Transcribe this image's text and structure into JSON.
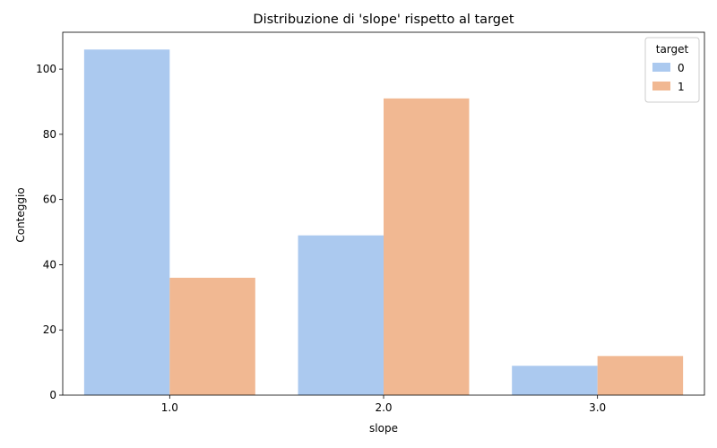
{
  "chart_data": {
    "type": "bar",
    "title": "Distribuzione di 'slope' rispetto al target",
    "xlabel": "slope",
    "ylabel": "Conteggio",
    "categories": [
      "1.0",
      "2.0",
      "3.0"
    ],
    "series": [
      {
        "name": "0",
        "color": "#abc9ef",
        "values": [
          106,
          49,
          9
        ]
      },
      {
        "name": "1",
        "color": "#f1b892",
        "values": [
          36,
          91,
          12
        ]
      }
    ],
    "ylim": [
      0,
      111.3
    ],
    "yticks": [
      0,
      20,
      40,
      60,
      80,
      100
    ],
    "grid": false,
    "legend": {
      "title": "target",
      "position": "top-right"
    }
  }
}
